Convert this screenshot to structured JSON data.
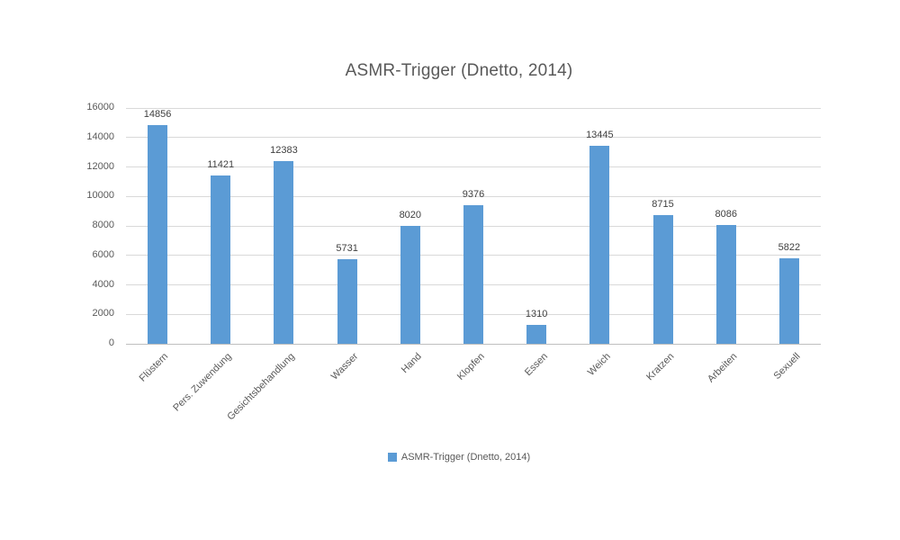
{
  "chart_data": {
    "type": "bar",
    "title": "ASMR-Trigger (Dnetto, 2014)",
    "series_name": "ASMR-Trigger (Dnetto, 2014)",
    "categories": [
      "Flüstern",
      "Pers. Zuwendung",
      "Gesichtsbehandlung",
      "Wasser",
      "Hand",
      "Klopfen",
      "Essen",
      "Weich",
      "Kratzen",
      "Arbeiten",
      "Sexuell"
    ],
    "values": [
      14856,
      11421,
      12383,
      5731,
      8020,
      9376,
      1310,
      13445,
      8715,
      8086,
      5822
    ],
    "data_labels": [
      14856,
      11421,
      12383,
      5731,
      8020,
      9376,
      1310,
      13445,
      8715,
      8086,
      5822
    ],
    "xlabel": "",
    "ylabel": "",
    "ylim": [
      0,
      16000
    ],
    "yticks": [
      0,
      2000,
      4000,
      6000,
      8000,
      10000,
      12000,
      14000,
      16000
    ],
    "grid": true,
    "legend_position": "bottom"
  },
  "legend": {
    "label": "ASMR-Trigger (Dnetto, 2014)"
  },
  "colors": {
    "bar": "#5b9bd5",
    "gridline": "#d9d9d9",
    "axis_line": "#bfbfbf",
    "title_text": "#595959",
    "tick_text": "#595959",
    "value_label_text": "#3f3f3f"
  }
}
